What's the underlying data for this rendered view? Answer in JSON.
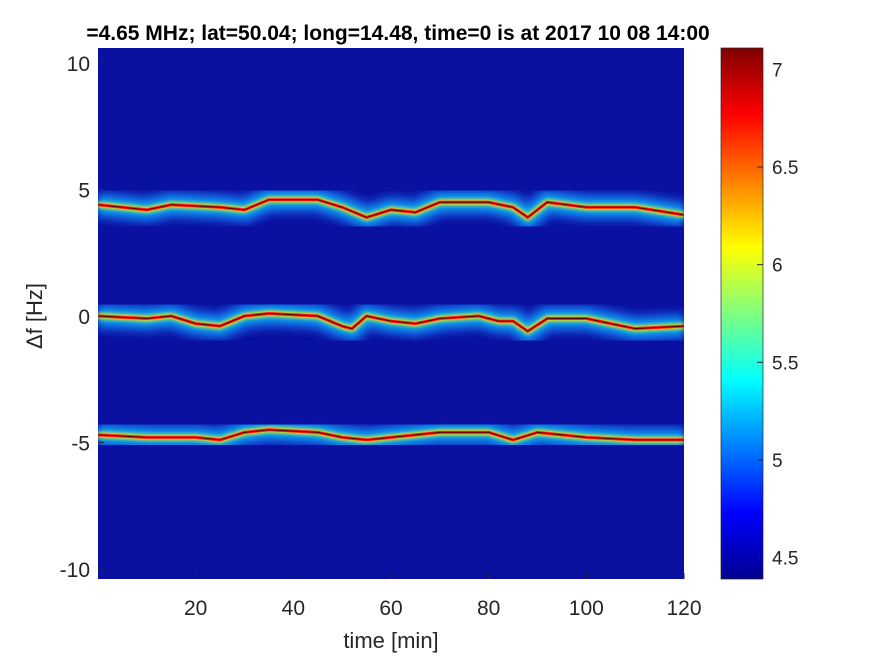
{
  "chart_data": {
    "type": "heatmap",
    "title": "=4.65 MHz;  lat=50.04; long=14.48, time=0 is at 2017 10 08 14:00",
    "xlabel": "time [min]",
    "ylabel": "Δf [Hz]",
    "xlim": [
      0,
      120
    ],
    "ylim": [
      -10.4,
      10.6
    ],
    "xticks": [
      20,
      40,
      60,
      80,
      100,
      120
    ],
    "xtick_labels": [
      "20",
      "40",
      "60",
      "80",
      "100",
      "120"
    ],
    "yticks": [
      10,
      5,
      0,
      -5,
      -10
    ],
    "ytick_labels": [
      "10",
      "5",
      "0",
      "-5",
      "-10"
    ],
    "background_value": 4.45,
    "colormap": "jet",
    "colorbar": {
      "clim": [
        4.39,
        7.11
      ],
      "ticks": [
        4.5,
        5,
        5.5,
        6,
        6.5,
        7
      ],
      "tick_labels": [
        "4.5",
        "5",
        "5.5",
        "6",
        "6.5",
        "7"
      ]
    },
    "tracks": [
      {
        "name": "upper-band",
        "peak": 7.1,
        "points": [
          [
            0,
            4.4
          ],
          [
            10,
            4.2
          ],
          [
            15,
            4.4
          ],
          [
            25,
            4.3
          ],
          [
            30,
            4.2
          ],
          [
            35,
            4.6
          ],
          [
            45,
            4.6
          ],
          [
            50,
            4.3
          ],
          [
            55,
            3.9
          ],
          [
            60,
            4.2
          ],
          [
            65,
            4.1
          ],
          [
            70,
            4.5
          ],
          [
            80,
            4.5
          ],
          [
            85,
            4.3
          ],
          [
            88,
            3.9
          ],
          [
            92,
            4.5
          ],
          [
            100,
            4.3
          ],
          [
            110,
            4.3
          ],
          [
            120,
            4.0
          ]
        ]
      },
      {
        "name": "middle-band",
        "peak": 7.1,
        "points": [
          [
            0,
            0
          ],
          [
            10,
            -0.1
          ],
          [
            15,
            0
          ],
          [
            20,
            -0.3
          ],
          [
            25,
            -0.4
          ],
          [
            30,
            0
          ],
          [
            35,
            0.1
          ],
          [
            45,
            0
          ],
          [
            50,
            -0.4
          ],
          [
            52,
            -0.5
          ],
          [
            55,
            0
          ],
          [
            60,
            -0.2
          ],
          [
            65,
            -0.3
          ],
          [
            70,
            -0.1
          ],
          [
            78,
            0
          ],
          [
            82,
            -0.2
          ],
          [
            85,
            -0.2
          ],
          [
            88,
            -0.6
          ],
          [
            92,
            -0.1
          ],
          [
            100,
            -0.1
          ],
          [
            105,
            -0.3
          ],
          [
            110,
            -0.5
          ],
          [
            120,
            -0.4
          ]
        ]
      },
      {
        "name": "lower-band",
        "peak": 7.1,
        "points": [
          [
            0,
            -4.7
          ],
          [
            10,
            -4.8
          ],
          [
            20,
            -4.8
          ],
          [
            25,
            -4.9
          ],
          [
            30,
            -4.6
          ],
          [
            35,
            -4.5
          ],
          [
            45,
            -4.6
          ],
          [
            50,
            -4.8
          ],
          [
            55,
            -4.9
          ],
          [
            60,
            -4.8
          ],
          [
            70,
            -4.6
          ],
          [
            80,
            -4.6
          ],
          [
            85,
            -4.9
          ],
          [
            90,
            -4.6
          ],
          [
            95,
            -4.7
          ],
          [
            100,
            -4.8
          ],
          [
            110,
            -4.9
          ],
          [
            120,
            -4.9
          ]
        ]
      }
    ]
  }
}
